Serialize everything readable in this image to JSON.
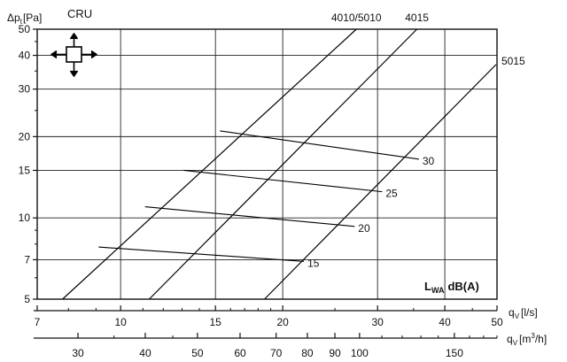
{
  "chart_data": {
    "type": "line",
    "title": "CRU",
    "ylabel": "Δp",
    "ylabel_sub": "t",
    "ylabel_unit": "[Pa]",
    "xlabel": "q",
    "xlabel_sub": "V",
    "xlabel_unit": "[l/s]",
    "xlabel2": "q",
    "xlabel2_sub": "V",
    "xlabel2_unit_pre": "[m",
    "xlabel2_unit_sup": "3",
    "xlabel2_unit_post": "/h]",
    "x_scale": "log",
    "y_scale": "log",
    "xlim": [
      7,
      50
    ],
    "ylim": [
      5,
      50
    ],
    "y_ticks": [
      5,
      7,
      10,
      15,
      20,
      30,
      40,
      50
    ],
    "x_ticks": [
      7,
      10,
      15,
      20,
      30,
      40,
      50
    ],
    "x2_ticks": [
      30,
      40,
      50,
      60,
      70,
      80,
      90,
      100,
      150
    ],
    "grid_x": [
      10,
      15,
      20,
      30,
      40
    ],
    "grid_y": [
      7,
      10,
      15,
      20,
      30,
      40
    ],
    "series": [
      {
        "name": "4010/5010",
        "x": [
          7.8,
          27.4
        ],
        "y": [
          5,
          50
        ]
      },
      {
        "name": "4015",
        "x": [
          11.3,
          35.5
        ],
        "y": [
          5,
          50
        ]
      },
      {
        "name": "5015",
        "x": [
          18.5,
          49.8
        ],
        "y": [
          5,
          37
        ]
      }
    ],
    "sound_lines": [
      {
        "label": "15",
        "x": [
          9.1,
          21.9
        ],
        "y": [
          7.8,
          6.9
        ]
      },
      {
        "label": "20",
        "x": [
          11.1,
          27.2
        ],
        "y": [
          11.0,
          9.3
        ]
      },
      {
        "label": "25",
        "x": [
          13.1,
          30.6
        ],
        "y": [
          15.0,
          12.5
        ]
      },
      {
        "label": "30",
        "x": [
          15.3,
          35.8
        ],
        "y": [
          21.0,
          16.5
        ]
      }
    ],
    "annotation": {
      "main": "L",
      "sub": "WA",
      "unit": "dB(A)"
    },
    "icon": "four-way-arrows-diffuser-icon"
  }
}
